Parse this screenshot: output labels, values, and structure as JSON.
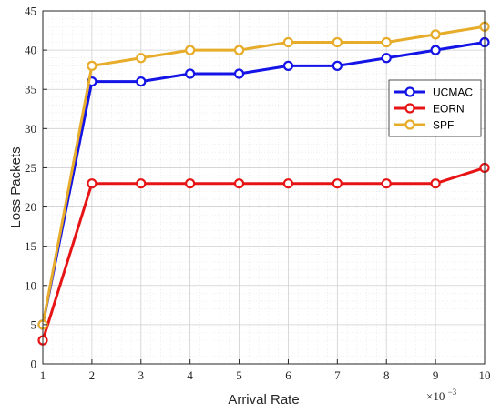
{
  "chart_data": {
    "type": "line",
    "x": [
      1,
      2,
      3,
      4,
      5,
      6,
      7,
      8,
      9,
      10
    ],
    "xlabel": "Arrival Rate",
    "ylabel": "Loss Packets",
    "x_multiplier": "×10",
    "x_multiplier_exp": "−3",
    "xlim": [
      1,
      10
    ],
    "ylim": [
      0,
      45
    ],
    "xticks": [
      1,
      2,
      3,
      4,
      5,
      6,
      7,
      8,
      9,
      10
    ],
    "yticks": [
      0,
      5,
      10,
      15,
      20,
      25,
      30,
      35,
      40,
      45
    ],
    "grid": true,
    "minor_grid": true,
    "legend_position": "right",
    "series": [
      {
        "name": "UCMAC",
        "color": "#1414e6",
        "values": [
          5,
          36,
          36,
          37,
          37,
          38,
          38,
          39,
          40,
          41
        ]
      },
      {
        "name": "EORN",
        "color": "#e61414",
        "values": [
          3,
          23,
          23,
          23,
          23,
          23,
          23,
          23,
          23,
          25
        ]
      },
      {
        "name": "SPF",
        "color": "#e6ac2a",
        "values": [
          5,
          38,
          39,
          40,
          40,
          41,
          41,
          41,
          42,
          43
        ]
      }
    ]
  }
}
